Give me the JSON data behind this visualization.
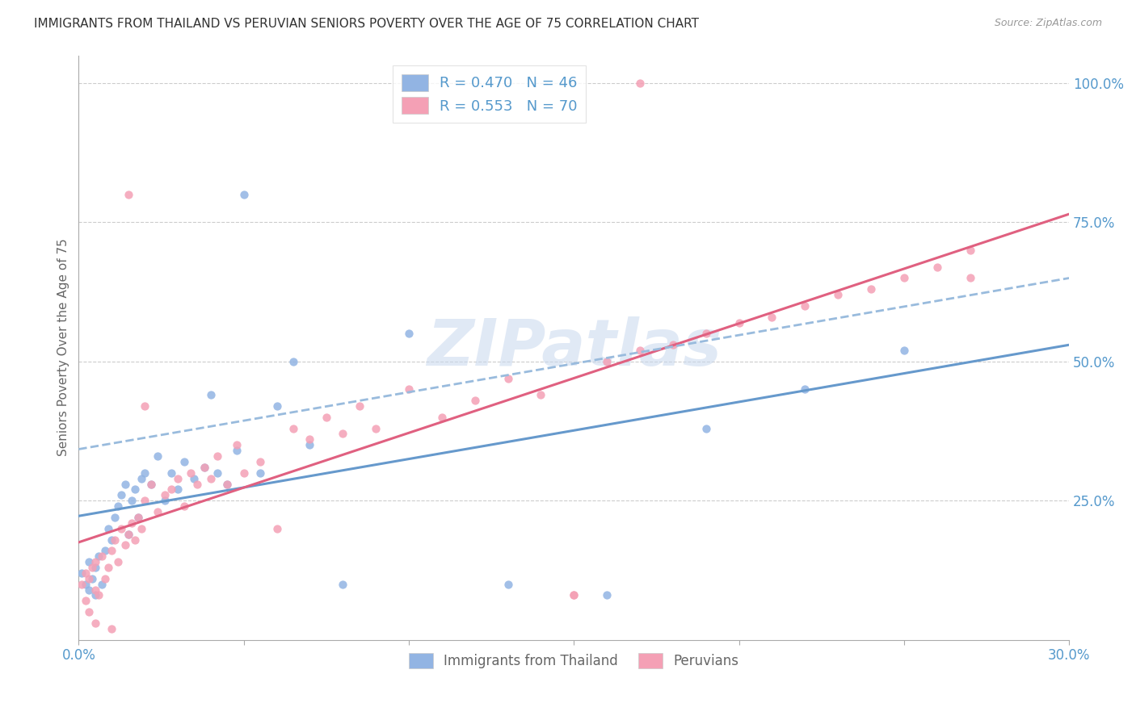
{
  "title": "IMMIGRANTS FROM THAILAND VS PERUVIAN SENIORS POVERTY OVER THE AGE OF 75 CORRELATION CHART",
  "source": "Source: ZipAtlas.com",
  "ylabel": "Seniors Poverty Over the Age of 75",
  "xlim": [
    0.0,
    0.3
  ],
  "ylim": [
    0.0,
    1.05
  ],
  "legend_blue_label": "R = 0.470   N = 46",
  "legend_pink_label": "R = 0.553   N = 70",
  "legend_bottom_blue": "Immigrants from Thailand",
  "legend_bottom_pink": "Peruvians",
  "blue_color": "#92b4e3",
  "pink_color": "#f4a0b5",
  "blue_line_color": "#6699cc",
  "pink_line_color": "#e06080",
  "dashed_line_color": "#99bbdd",
  "axis_color": "#5599cc",
  "grid_color": "#cccccc",
  "watermark": "ZIPatlas",
  "thailand_x": [
    0.001,
    0.002,
    0.003,
    0.003,
    0.004,
    0.005,
    0.005,
    0.006,
    0.007,
    0.008,
    0.009,
    0.01,
    0.011,
    0.012,
    0.013,
    0.014,
    0.015,
    0.016,
    0.017,
    0.018,
    0.019,
    0.02,
    0.022,
    0.024,
    0.026,
    0.028,
    0.03,
    0.032,
    0.035,
    0.038,
    0.04,
    0.042,
    0.045,
    0.048,
    0.05,
    0.055,
    0.06,
    0.065,
    0.07,
    0.08,
    0.1,
    0.13,
    0.16,
    0.19,
    0.22,
    0.25
  ],
  "thailand_y": [
    0.12,
    0.1,
    0.14,
    0.09,
    0.11,
    0.08,
    0.13,
    0.15,
    0.1,
    0.16,
    0.2,
    0.18,
    0.22,
    0.24,
    0.26,
    0.28,
    0.19,
    0.25,
    0.27,
    0.22,
    0.29,
    0.3,
    0.28,
    0.33,
    0.25,
    0.3,
    0.27,
    0.32,
    0.29,
    0.31,
    0.44,
    0.3,
    0.28,
    0.34,
    0.8,
    0.3,
    0.42,
    0.5,
    0.35,
    0.1,
    0.55,
    0.1,
    0.08,
    0.38,
    0.45,
    0.52
  ],
  "peruvian_x": [
    0.001,
    0.002,
    0.002,
    0.003,
    0.004,
    0.005,
    0.005,
    0.006,
    0.007,
    0.008,
    0.009,
    0.01,
    0.011,
    0.012,
    0.013,
    0.014,
    0.015,
    0.016,
    0.017,
    0.018,
    0.019,
    0.02,
    0.022,
    0.024,
    0.026,
    0.028,
    0.03,
    0.032,
    0.034,
    0.036,
    0.038,
    0.04,
    0.042,
    0.045,
    0.048,
    0.05,
    0.055,
    0.06,
    0.065,
    0.07,
    0.075,
    0.08,
    0.085,
    0.09,
    0.1,
    0.11,
    0.12,
    0.13,
    0.14,
    0.15,
    0.16,
    0.17,
    0.18,
    0.19,
    0.2,
    0.21,
    0.22,
    0.23,
    0.24,
    0.25,
    0.26,
    0.27,
    0.003,
    0.005,
    0.01,
    0.17,
    0.015,
    0.02,
    0.15,
    0.27
  ],
  "peruvian_y": [
    0.1,
    0.12,
    0.07,
    0.11,
    0.13,
    0.09,
    0.14,
    0.08,
    0.15,
    0.11,
    0.13,
    0.16,
    0.18,
    0.14,
    0.2,
    0.17,
    0.19,
    0.21,
    0.18,
    0.22,
    0.2,
    0.25,
    0.28,
    0.23,
    0.26,
    0.27,
    0.29,
    0.24,
    0.3,
    0.28,
    0.31,
    0.29,
    0.33,
    0.28,
    0.35,
    0.3,
    0.32,
    0.2,
    0.38,
    0.36,
    0.4,
    0.37,
    0.42,
    0.38,
    0.45,
    0.4,
    0.43,
    0.47,
    0.44,
    0.08,
    0.5,
    0.52,
    0.53,
    0.55,
    0.57,
    0.58,
    0.6,
    0.62,
    0.63,
    0.65,
    0.67,
    0.7,
    0.05,
    0.03,
    0.02,
    1.0,
    0.8,
    0.42,
    0.08,
    0.65
  ]
}
